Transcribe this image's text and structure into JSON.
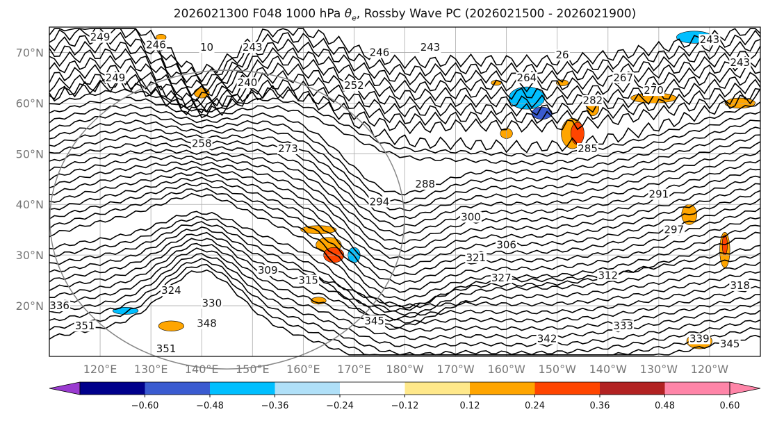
{
  "title": {
    "prefix": "2026021300 F048 1000 hPa ",
    "symbol": "θ",
    "subscript": "e",
    "suffix": ", Rossby Wave PC (2026021500 - 2026021900)"
  },
  "map": {
    "projection": "plate-carree",
    "lon_range": [
      110,
      250
    ],
    "lat_range": [
      10,
      75
    ],
    "lat_labels": [
      "20°N",
      "30°N",
      "40°N",
      "50°N",
      "60°N",
      "70°N"
    ],
    "lon_labels": [
      "120°E",
      "130°E",
      "140°E",
      "150°E",
      "160°E",
      "170°E",
      "180°W",
      "170°W",
      "160°W",
      "150°W",
      "140°W",
      "130°W",
      "120°W"
    ],
    "gridlines": true
  },
  "contour_labels": [
    {
      "text": "249",
      "lon": 120,
      "lat": 73
    },
    {
      "text": "246",
      "lon": 131,
      "lat": 71.5
    },
    {
      "text": "10",
      "lon": 141,
      "lat": 71
    },
    {
      "text": "243",
      "lon": 150,
      "lat": 71
    },
    {
      "text": "246",
      "lon": 175,
      "lat": 70
    },
    {
      "text": "243",
      "lon": 185,
      "lat": 71
    },
    {
      "text": "249",
      "lon": 123,
      "lat": 65
    },
    {
      "text": "240",
      "lon": 149,
      "lat": 64
    },
    {
      "text": "252",
      "lon": 170,
      "lat": 63.5
    },
    {
      "text": "26",
      "lon": 211,
      "lat": 69.5
    },
    {
      "text": "264",
      "lon": 204,
      "lat": 65
    },
    {
      "text": "267",
      "lon": 223,
      "lat": 65
    },
    {
      "text": "270",
      "lon": 229,
      "lat": 62.5
    },
    {
      "text": "282",
      "lon": 217,
      "lat": 60.5
    },
    {
      "text": "243",
      "lon": 240,
      "lat": 72.5
    },
    {
      "text": "243",
      "lon": 246,
      "lat": 68
    },
    {
      "text": "258",
      "lon": 140,
      "lat": 52
    },
    {
      "text": "273",
      "lon": 157,
      "lat": 51
    },
    {
      "text": "285",
      "lon": 216,
      "lat": 51
    },
    {
      "text": "288",
      "lon": 184,
      "lat": 44
    },
    {
      "text": "294",
      "lon": 175,
      "lat": 40.5
    },
    {
      "text": "291",
      "lon": 230,
      "lat": 42
    },
    {
      "text": "300",
      "lon": 193,
      "lat": 37.5
    },
    {
      "text": "297",
      "lon": 233,
      "lat": 35
    },
    {
      "text": "306",
      "lon": 200,
      "lat": 32
    },
    {
      "text": "321",
      "lon": 194,
      "lat": 29.5
    },
    {
      "text": "327",
      "lon": 199,
      "lat": 25.5
    },
    {
      "text": "312",
      "lon": 220,
      "lat": 26
    },
    {
      "text": "309",
      "lon": 153,
      "lat": 27
    },
    {
      "text": "315",
      "lon": 161,
      "lat": 25
    },
    {
      "text": "324",
      "lon": 134,
      "lat": 23
    },
    {
      "text": "330",
      "lon": 142,
      "lat": 20.5
    },
    {
      "text": "336",
      "lon": 112,
      "lat": 20
    },
    {
      "text": "345",
      "lon": 174,
      "lat": 17
    },
    {
      "text": "351",
      "lon": 117,
      "lat": 16
    },
    {
      "text": "348",
      "lon": 141,
      "lat": 16.5
    },
    {
      "text": "333",
      "lon": 223,
      "lat": 16
    },
    {
      "text": "342",
      "lon": 208,
      "lat": 13.5
    },
    {
      "text": "339",
      "lon": 238,
      "lat": 13.5
    },
    {
      "text": "345",
      "lon": 244,
      "lat": 12.5
    },
    {
      "text": "351",
      "lon": 133,
      "lat": 11.5
    },
    {
      "text": "318",
      "lon": 246,
      "lat": 24
    }
  ],
  "colorbar": {
    "ticks": [
      "−0.60",
      "−0.48",
      "−0.36",
      "−0.24",
      "−0.12",
      "0.12",
      "0.24",
      "0.36",
      "0.48",
      "0.60"
    ],
    "colors": [
      "#9a3bd0",
      "#00008b",
      "#3a5bd0",
      "#00bfff",
      "#b0e0f8",
      "#ffffff",
      "#ffe88a",
      "#ffa500",
      "#ff4500",
      "#b22222",
      "#ff85a8",
      "#ff85a8"
    ],
    "levels": [
      -0.72,
      -0.6,
      -0.48,
      -0.36,
      -0.24,
      -0.12,
      0.12,
      0.24,
      0.36,
      0.48,
      0.6,
      0.72
    ]
  },
  "shading_blobs": [
    {
      "lon": 213,
      "lat": 54,
      "rx": 2.2,
      "ry": 3.0,
      "color": "#ffa500"
    },
    {
      "lon": 214,
      "lat": 54,
      "rx": 1.3,
      "ry": 2.2,
      "color": "#ff4500"
    },
    {
      "lon": 217,
      "lat": 59,
      "rx": 1.2,
      "ry": 1.5,
      "color": "#ffa500"
    },
    {
      "lon": 204,
      "lat": 61,
      "rx": 3.5,
      "ry": 2.2,
      "color": "#00bfff"
    },
    {
      "lon": 207,
      "lat": 58,
      "rx": 2.0,
      "ry": 1.2,
      "color": "#3a5bd0"
    },
    {
      "lon": 165,
      "lat": 32,
      "rx": 2.5,
      "ry": 1.5,
      "color": "#ffa500"
    },
    {
      "lon": 166,
      "lat": 30,
      "rx": 2.0,
      "ry": 1.5,
      "color": "#ff4500"
    },
    {
      "lon": 163,
      "lat": 35,
      "rx": 3.5,
      "ry": 0.8,
      "color": "#ffa500"
    },
    {
      "lon": 170,
      "lat": 30,
      "rx": 1.2,
      "ry": 1.5,
      "color": "#00bfff"
    },
    {
      "lon": 243,
      "lat": 31,
      "rx": 1.0,
      "ry": 3.5,
      "color": "#ffa500"
    },
    {
      "lon": 243,
      "lat": 32,
      "rx": 0.5,
      "ry": 2.0,
      "color": "#ff4500"
    },
    {
      "lon": 236,
      "lat": 38,
      "rx": 1.5,
      "ry": 2.0,
      "color": "#ffa500"
    },
    {
      "lon": 238,
      "lat": 13,
      "rx": 2.5,
      "ry": 1.5,
      "color": "#ffa500"
    },
    {
      "lon": 134,
      "lat": 16,
      "rx": 2.5,
      "ry": 1.0,
      "color": "#ffa500"
    },
    {
      "lon": 125,
      "lat": 19,
      "rx": 2.5,
      "ry": 0.7,
      "color": "#00bfff"
    },
    {
      "lon": 132,
      "lat": 73,
      "rx": 1.0,
      "ry": 0.6,
      "color": "#ffa500"
    },
    {
      "lon": 237,
      "lat": 73,
      "rx": 3.5,
      "ry": 1.2,
      "color": "#00bfff"
    },
    {
      "lon": 229,
      "lat": 61,
      "rx": 4.5,
      "ry": 1.0,
      "color": "#ffa500"
    },
    {
      "lon": 246,
      "lat": 60,
      "rx": 3.0,
      "ry": 1.0,
      "color": "#ffa500"
    },
    {
      "lon": 140,
      "lat": 62,
      "rx": 1.5,
      "ry": 1.0,
      "color": "#ffa500"
    },
    {
      "lon": 200,
      "lat": 54,
      "rx": 1.2,
      "ry": 1.0,
      "color": "#ffa500"
    },
    {
      "lon": 152,
      "lat": 27,
      "rx": 1.0,
      "ry": 0.4,
      "color": "#ffa500"
    },
    {
      "lon": 163,
      "lat": 21,
      "rx": 1.5,
      "ry": 0.7,
      "color": "#ffa500"
    },
    {
      "lon": 211,
      "lat": 64,
      "rx": 1.2,
      "ry": 0.6,
      "color": "#ffa500"
    },
    {
      "lon": 198,
      "lat": 64,
      "rx": 1.0,
      "ry": 0.5,
      "color": "#ffa500"
    }
  ]
}
